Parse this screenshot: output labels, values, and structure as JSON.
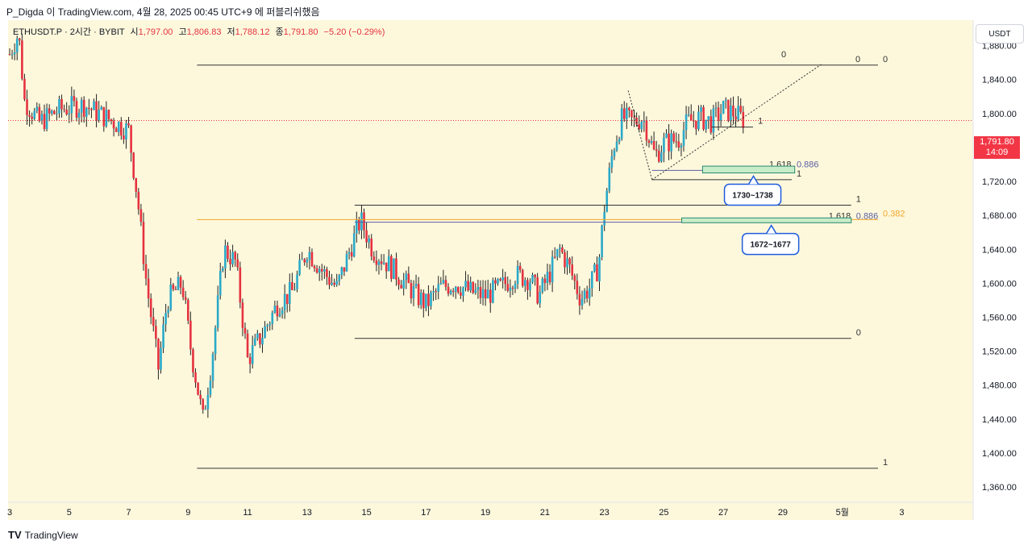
{
  "caption": "P_Digda 이 TradingView.com, 4월 28, 2025 00:45 UTC+9 에 퍼블리쉬했음",
  "brand": "TradingView",
  "currency": "USDT",
  "legend": {
    "symbol": "ETHUSDT.P · 2시간 · BYBIT",
    "open_label": "시",
    "open": "1,797.00",
    "high_label": "고",
    "high": "1,806.83",
    "low_label": "저",
    "low": "1,788.12",
    "close_label": "종",
    "close": "1,791.80",
    "change": "−5.20 (−0.29%)"
  },
  "last_price": {
    "price": "1,791.80",
    "countdown": "14:09",
    "value": 1791.8
  },
  "colors": {
    "background": "#fdf8dc",
    "up": "#2aa9c9",
    "down": "#e5323f",
    "gold": "#f3a52a",
    "box_border": "#1f5ce0",
    "zone_fill": "#c7ecc7",
    "zone_border": "#2a8a72"
  },
  "chart_data": {
    "type": "candlestick",
    "y_ticks": [
      1880,
      1840,
      1800,
      1760,
      1720,
      1680,
      1640,
      1600,
      1560,
      1520,
      1480,
      1440,
      1400,
      1360
    ],
    "y_tick_labels": [
      "1,880.00",
      "1,840.00",
      "1,800.00",
      "1,760.00",
      "1,720.00",
      "1,680.00",
      "1,640.00",
      "1,600.00",
      "1,560.00",
      "1,520.00",
      "1,480.00",
      "1,440.00",
      "1,400.00",
      "1,360.00"
    ],
    "ylim": [
      1342,
      1910
    ],
    "x_tick_labels": [
      "3",
      "5",
      "7",
      "9",
      "11",
      "13",
      "15",
      "17",
      "19",
      "21",
      "23",
      "25",
      "27",
      "29",
      "5월",
      "3"
    ],
    "x_tick_days": [
      3,
      5,
      7,
      9,
      11,
      13,
      15,
      17,
      19,
      21,
      23,
      25,
      27,
      29,
      31,
      33
    ],
    "xlim": [
      3,
      35.4
    ],
    "price_path": [
      [
        3.0,
        1870
      ],
      [
        3.3,
        1895
      ],
      [
        3.5,
        1815
      ],
      [
        4.0,
        1790
      ],
      [
        4.7,
        1805
      ],
      [
        5.5,
        1810
      ],
      [
        6.0,
        1800
      ],
      [
        6.5,
        1790
      ],
      [
        7.0,
        1780
      ],
      [
        7.3,
        1700
      ],
      [
        7.6,
        1600
      ],
      [
        8.0,
        1500
      ],
      [
        8.3,
        1580
      ],
      [
        8.8,
        1600
      ],
      [
        9.1,
        1520
      ],
      [
        9.5,
        1440
      ],
      [
        9.8,
        1510
      ],
      [
        10.2,
        1640
      ],
      [
        10.6,
        1625
      ],
      [
        11.0,
        1510
      ],
      [
        11.5,
        1540
      ],
      [
        12.0,
        1575
      ],
      [
        12.5,
        1590
      ],
      [
        13.0,
        1640
      ],
      [
        13.5,
        1615
      ],
      [
        14.0,
        1595
      ],
      [
        14.5,
        1645
      ],
      [
        14.8,
        1675
      ],
      [
        15.2,
        1640
      ],
      [
        15.8,
        1620
      ],
      [
        16.3,
        1600
      ],
      [
        16.7,
        1585
      ],
      [
        17.0,
        1575
      ],
      [
        17.5,
        1595
      ],
      [
        18.0,
        1600
      ],
      [
        18.5,
        1590
      ],
      [
        19.0,
        1585
      ],
      [
        19.5,
        1595
      ],
      [
        20.0,
        1610
      ],
      [
        20.5,
        1605
      ],
      [
        20.8,
        1585
      ],
      [
        21.2,
        1615
      ],
      [
        21.5,
        1640
      ],
      [
        21.8,
        1620
      ],
      [
        22.2,
        1582
      ],
      [
        22.5,
        1595
      ],
      [
        22.8,
        1620
      ],
      [
        23.0,
        1690
      ],
      [
        23.3,
        1760
      ],
      [
        23.6,
        1795
      ],
      [
        24.0,
        1790
      ],
      [
        24.3,
        1795
      ],
      [
        24.7,
        1750
      ],
      [
        25.0,
        1765
      ],
      [
        25.5,
        1770
      ],
      [
        25.8,
        1790
      ],
      [
        26.2,
        1795
      ],
      [
        26.6,
        1790
      ],
      [
        27.0,
        1805
      ],
      [
        27.4,
        1800
      ],
      [
        27.7,
        1792
      ]
    ],
    "horizontal_levels": [
      {
        "price": 1857,
        "from_day": 9.3,
        "to_day": 32.2,
        "color": "#333333",
        "label": "0",
        "label2": "0",
        "label3": "0"
      },
      {
        "price": 1784,
        "from_day": 26.6,
        "to_day": 28.0,
        "color": "#333333",
        "label": "1"
      },
      {
        "price": 1733,
        "from_day": 24.6,
        "to_day": 29.3,
        "color": "#5b5fa3",
        "label": "0.886",
        "label2": "1.618"
      },
      {
        "price": 1722,
        "from_day": 24.6,
        "to_day": 29.3,
        "color": "#333333",
        "label": "1"
      },
      {
        "price": 1692,
        "from_day": 14.6,
        "to_day": 31.3,
        "color": "#333333",
        "label": "1"
      },
      {
        "price": 1675,
        "from_day": 9.3,
        "to_day": 32.2,
        "color": "#f3a52a",
        "label": "0.382"
      },
      {
        "price": 1672,
        "from_day": 14.6,
        "to_day": 31.3,
        "color": "#5b5fa3",
        "label": "0.886",
        "label2": "1.618"
      },
      {
        "price": 1535,
        "from_day": 14.6,
        "to_day": 31.3,
        "color": "#333333",
        "label": "0"
      },
      {
        "price": 1382,
        "from_day": 9.3,
        "to_day": 32.2,
        "color": "#333333",
        "label": "1"
      }
    ],
    "zones": [
      {
        "price_top": 1738,
        "price_bottom": 1730,
        "from_day": 26.3,
        "to_day": 29.4,
        "callout": "1730~1738"
      },
      {
        "price_top": 1677,
        "price_bottom": 1672,
        "from_day": 25.6,
        "to_day": 31.3,
        "callout": "1672~1677"
      }
    ],
    "trendlines": [
      {
        "from": [
          24.6,
          1722
        ],
        "to": [
          30.3,
          1858
        ],
        "style": "dotted"
      },
      {
        "from": [
          23.8,
          1827
        ],
        "to": [
          24.6,
          1722
        ],
        "style": "dotted"
      }
    ]
  }
}
